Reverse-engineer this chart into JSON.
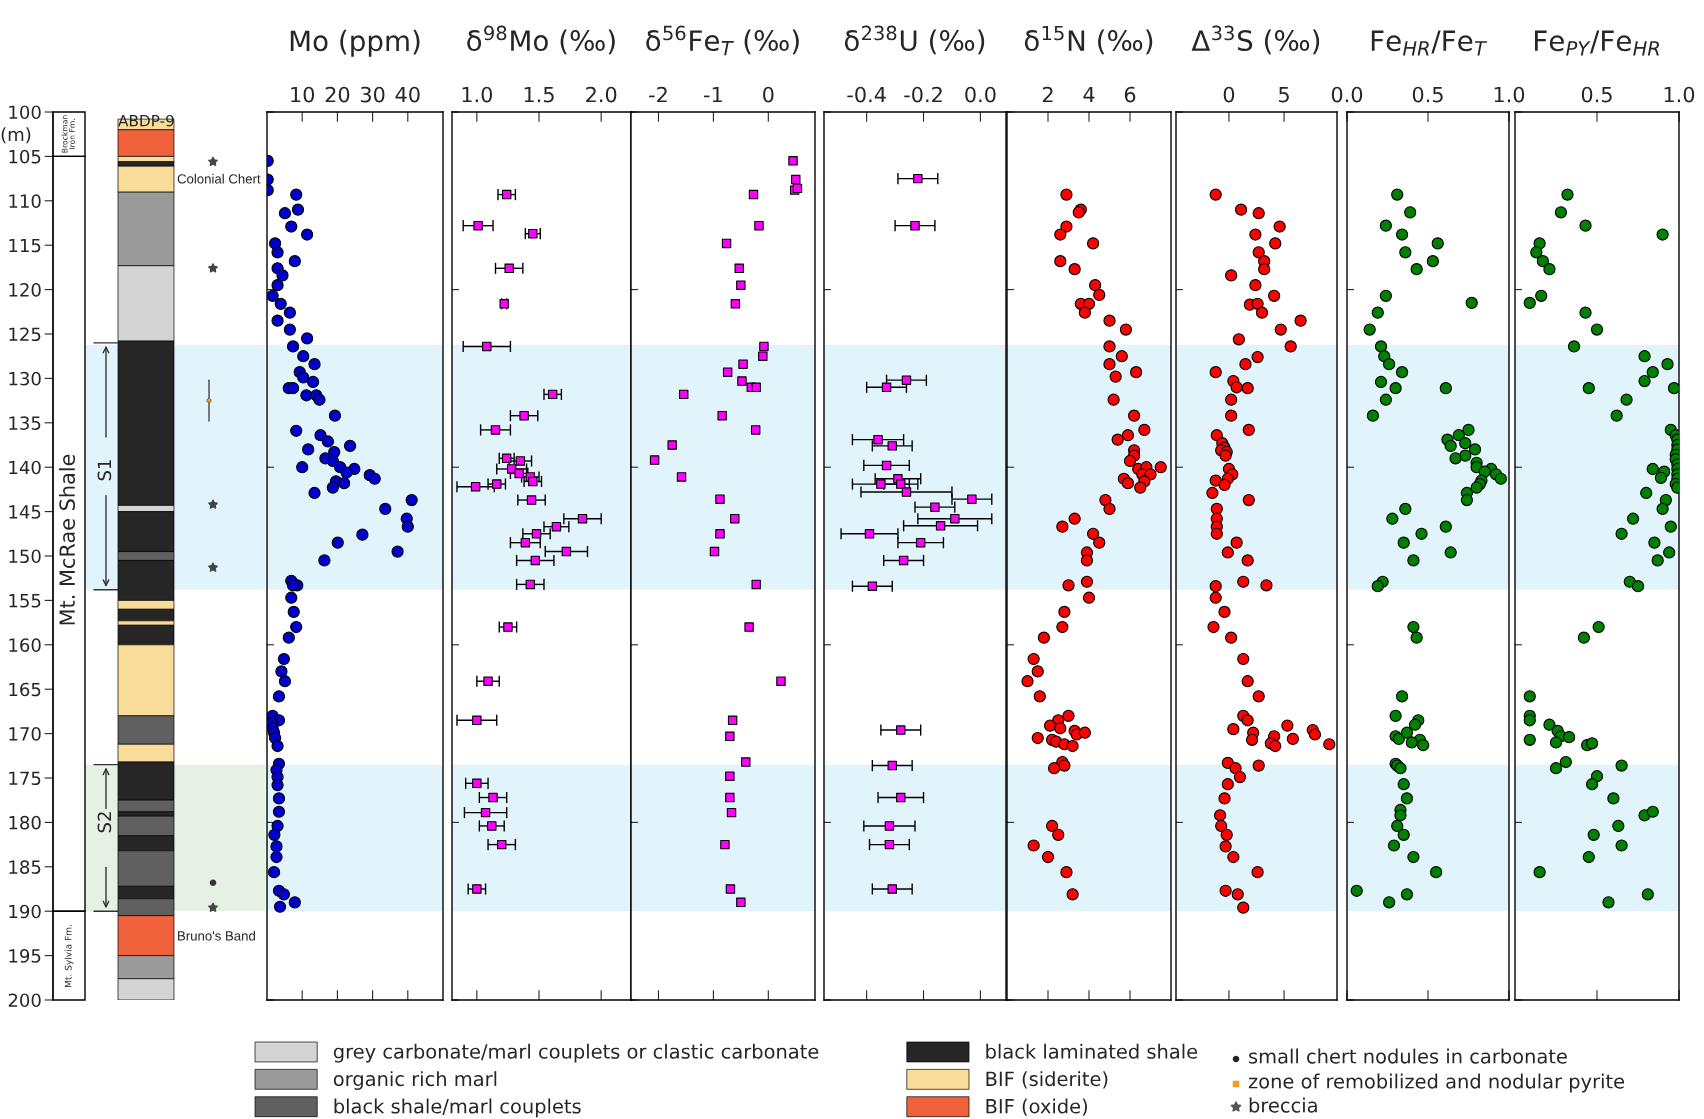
{
  "chart_data": [
    {
      "type": "bar",
      "categories": [
        null
      ],
      "tick_labels": "y",
      "legend": "bottom",
      "ylabel": "(m)",
      "ylim": [
        200,
        100
      ],
      "yticks": [
        100,
        105,
        110,
        115,
        120,
        125,
        130,
        135,
        140,
        145,
        150,
        155,
        160,
        165,
        170,
        175,
        180,
        185,
        190,
        195,
        200
      ],
      "series": [
        {
          "name": "grey carbonate/marl couplets or clastic carbonate",
          "color": "#d4d4d4",
          "base": [
            117.3
          ],
          "values": [
            8.5
          ]
        },
        {
          "name": "organic rich marl",
          "color": "#9a9a9a",
          "base": [
            109
          ],
          "values": [
            8.3
          ]
        },
        {
          "name": "black shale/marl couplets",
          "color": "#606060",
          "base": [
            149.5
          ],
          "values": [
            1
          ]
        },
        {
          "name": "black laminated shale",
          "color": "#262626",
          "base": [
            125.8
          ],
          "values": [
            18.5
          ]
        },
        {
          "name": "BIF (siderite)",
          "color": "#f9dc9a",
          "base": [
            100.8
          ],
          "values": [
            1.2
          ]
        },
        {
          "name": "BIF (oxide)",
          "color": "#f0623c",
          "base": [
            102
          ],
          "values": [
            3
          ]
        },
        {
          "color": "#f9dc9a",
          "base": [
            105
          ],
          "values": [
            0.6
          ]
        },
        {
          "color": "#262626",
          "base": [
            105.6
          ],
          "values": [
            0.5
          ]
        },
        {
          "color": "#f9dc9a",
          "base": [
            106.1
          ],
          "values": [
            2.9
          ]
        },
        {
          "color": "#d4d4d4",
          "base": [
            144.3
          ],
          "values": [
            0.7
          ]
        },
        {
          "color": "#262626",
          "base": [
            145
          ],
          "values": [
            4.5
          ]
        },
        {
          "color": "#262626",
          "base": [
            150.5
          ],
          "values": [
            4.5
          ]
        },
        {
          "color": "#f9dc9a",
          "base": [
            155
          ],
          "values": [
            1
          ]
        },
        {
          "color": "#262626",
          "base": [
            156
          ],
          "values": [
            1.3
          ]
        },
        {
          "color": "#f9dc9a",
          "base": [
            157.3
          ],
          "values": [
            0.5
          ]
        },
        {
          "color": "#262626",
          "base": [
            157.8
          ],
          "values": [
            2.2
          ]
        },
        {
          "color": "#f9dc9a",
          "base": [
            160
          ],
          "values": [
            8
          ]
        },
        {
          "color": "#606060",
          "base": [
            168
          ],
          "values": [
            3.2
          ]
        },
        {
          "color": "#f9dc9a",
          "base": [
            171.2
          ],
          "values": [
            2
          ]
        },
        {
          "color": "#262626",
          "base": [
            173.2
          ],
          "values": [
            4.3
          ]
        },
        {
          "color": "#606060",
          "base": [
            177.5
          ],
          "values": [
            1.3
          ]
        },
        {
          "color": "#262626",
          "base": [
            178.8
          ],
          "values": [
            0.5
          ]
        },
        {
          "color": "#606060",
          "base": [
            179.3
          ],
          "values": [
            2.2
          ]
        },
        {
          "color": "#262626",
          "base": [
            181.5
          ],
          "values": [
            1.7
          ]
        },
        {
          "color": "#606060",
          "base": [
            183.2
          ],
          "values": [
            4
          ]
        },
        {
          "color": "#262626",
          "base": [
            187.2
          ],
          "values": [
            1.4
          ]
        },
        {
          "color": "#606060",
          "base": [
            188.6
          ],
          "values": [
            1.9
          ]
        },
        {
          "color": "#f0623c",
          "base": [
            190.5
          ],
          "values": [
            4.5
          ]
        },
        {
          "color": "#9a9a9a",
          "base": [
            195
          ],
          "values": [
            2.6
          ]
        },
        {
          "color": "#d4d4d4",
          "base": [
            197.6
          ],
          "values": [
            2.4
          ]
        }
      ],
      "bands": [
        {
          "axis": "y",
          "from": 126.2,
          "to": 153.8,
          "color": "#e1f4fb"
        },
        {
          "axis": "y",
          "from": 173.5,
          "to": 190,
          "color": "#e5f2e3"
        }
      ],
      "annotations": [
        "ABDP-9",
        "Colonial Chert",
        "Bruno's Band",
        "Mt. McRae Shale",
        "S1",
        "S2",
        "Brockman Iron Fm.",
        "Mt. Sylvia Fm.",
        "small chert nodules in carbonate",
        "zone of remobilized and nodular pyrite",
        "breccia"
      ]
    },
    {
      "type": "scatter",
      "title": "Mo (ppm)",
      "xlim": [
        0,
        50
      ],
      "xticks": [
        10,
        20,
        30,
        40
      ],
      "ylim": [
        200,
        100
      ],
      "yticks": [
        100,
        120,
        140,
        160,
        180,
        200
      ],
      "tick_labels": "x",
      "marker": "circle",
      "bands": [
        {
          "axis": "y",
          "from": 126.2,
          "to": 153.8,
          "color": "#e1f4fb"
        },
        {
          "axis": "y",
          "from": 173.5,
          "to": 190,
          "color": "#e1f4fb"
        }
      ],
      "series": [
        {
          "color": "#0000cc",
          "x": [
            0.2,
            0.2,
            0.2,
            8.3,
            5.1,
            8.8,
            6.9,
            11.4,
            2.3,
            3.0,
            7.9,
            3.0,
            4.4,
            3.0,
            1.6,
            3.9,
            6.5,
            3.0,
            6.5,
            11.4,
            7.4,
            10.3,
            13.5,
            9.3,
            10.3,
            13.1,
            6.2,
            7.4,
            11.2,
            14.0,
            14.9,
            19.3,
            8.3,
            15.2,
            17.3,
            11.7,
            23.6,
            19.1,
            16.6,
            18.7,
            20.8,
            24.8,
            22.6,
            29.2,
            30.6,
            19.6,
            21.9,
            18.7,
            10.0,
            13.5,
            41.1,
            33.6,
            39.7,
            40.0,
            27.1,
            20.1,
            37.1,
            16.3,
            6.9,
            8.6,
            7.4,
            6.9,
            7.6,
            8.3,
            6.2,
            4.8,
            4.1,
            5.1,
            3.4,
            1.6,
            3.4,
            1.3,
            1.6,
            2.0,
            2.3,
            3.0,
            3.4,
            2.7,
            3.0,
            3.0,
            3.4,
            3.4,
            3.0,
            2.1,
            2.7,
            2.7,
            2.0,
            3.4,
            4.8,
            7.9,
            3.7
          ],
          "values": [
            105.5,
            107.6,
            108.8,
            109.3,
            111.4,
            111.0,
            112.9,
            113.8,
            114.8,
            115.8,
            116.8,
            117.6,
            118.4,
            119.5,
            120.7,
            121.6,
            122.6,
            123.5,
            124.5,
            125.5,
            126.4,
            127.5,
            128.4,
            129.3,
            129.9,
            130.4,
            131.1,
            131.1,
            131.9,
            131.9,
            132.4,
            134.2,
            135.9,
            136.4,
            137.1,
            138.0,
            137.6,
            138.3,
            139.0,
            139.3,
            140.0,
            140.2,
            140.6,
            140.9,
            141.3,
            141.6,
            141.8,
            142.3,
            140.0,
            142.9,
            143.7,
            144.7,
            145.8,
            146.7,
            147.6,
            148.5,
            149.5,
            150.5,
            152.8,
            153.3,
            153.3,
            154.7,
            156.3,
            158.0,
            159.2,
            161.6,
            163.0,
            164.1,
            165.8,
            168.0,
            168.5,
            168.8,
            169.4,
            169.9,
            170.5,
            171.4,
            173.4,
            174.1,
            174.9,
            175.8,
            177.3,
            178.8,
            180.4,
            181.4,
            182.7,
            183.9,
            185.6,
            187.7,
            188.1,
            189.0,
            189.5
          ]
        }
      ]
    },
    {
      "type": "scatter",
      "title": "δ$^{98}$Mo (‰)",
      "xlim": [
        0.8,
        2.24
      ],
      "xticks": [
        {
          "value": 1,
          "label": "1.0"
        },
        {
          "value": 1.5,
          "label": "1.5"
        },
        {
          "value": 2,
          "label": "2.0"
        }
      ],
      "ylim": [
        200,
        100
      ],
      "yticks": [
        100,
        120,
        140,
        160,
        180,
        200
      ],
      "tick_labels": "x",
      "marker": "square",
      "bands": [
        {
          "axis": "y",
          "from": 126.2,
          "to": 153.8,
          "color": "#e1f4fb"
        },
        {
          "axis": "y",
          "from": 173.5,
          "to": 190,
          "color": "#e1f4fb"
        }
      ],
      "series": [
        {
          "color": "#ff00ff",
          "x": [
            1.24,
            1.01,
            1.45,
            1.26,
            1.22,
            1.08,
            1.61,
            1.38,
            1.15,
            1.24,
            1.35,
            1.28,
            1.34,
            1.43,
            1.45,
            1.16,
            0.99,
            1.44,
            1.85,
            1.64,
            1.48,
            1.39,
            1.72,
            1.47,
            1.43,
            1.25,
            1.09,
            1.0,
            1.0,
            1.13,
            1.07,
            1.12,
            1.2,
            1.0
          ],
          "values": [
            109.3,
            112.8,
            113.7,
            117.6,
            121.6,
            126.4,
            131.8,
            134.2,
            135.8,
            139.0,
            139.3,
            140.2,
            140.7,
            141.1,
            141.6,
            141.9,
            142.2,
            143.7,
            145.8,
            146.7,
            147.5,
            148.5,
            149.5,
            150.5,
            153.2,
            158.0,
            164.1,
            168.5,
            175.6,
            177.2,
            178.9,
            180.4,
            182.5,
            187.5
          ],
          "xerrors": [
            0.07,
            0.12,
            0.06,
            0.11,
            0.02,
            0.19,
            0.07,
            0.11,
            0.12,
            0.06,
            0.09,
            0.12,
            0.07,
            0.07,
            0.07,
            0.07,
            0.15,
            0.11,
            0.15,
            0.1,
            0.11,
            0.12,
            0.17,
            0.15,
            0.11,
            0.07,
            0.09,
            0.16,
            0.09,
            0.11,
            0.17,
            0.1,
            0.11,
            0.07
          ]
        }
      ]
    },
    {
      "type": "scatter",
      "title": "δ$^{56}$Fe$_{T}$ (‰)",
      "xlim": [
        -2.5,
        0.85
      ],
      "xticks": [
        -2,
        -1,
        0
      ],
      "ylim": [
        200,
        100
      ],
      "yticks": [
        100,
        120,
        140,
        160,
        180,
        200
      ],
      "tick_labels": "x",
      "marker": "square",
      "bands": [
        {
          "axis": "y",
          "from": 126.2,
          "to": 153.8,
          "color": "#e1f4fb"
        },
        {
          "axis": "y",
          "from": 173.5,
          "to": 190,
          "color": "#e1f4fb"
        }
      ],
      "series": [
        {
          "color": "#ff00ff",
          "x": [
            0.45,
            0.5,
            0.48,
            0.53,
            -0.27,
            -0.17,
            -0.76,
            -0.53,
            -0.5,
            -0.6,
            -0.08,
            -0.1,
            -0.46,
            -0.74,
            -0.48,
            -0.31,
            -0.22,
            -1.54,
            -0.84,
            -0.23,
            -1.75,
            -2.07,
            -1.58,
            -0.88,
            -0.61,
            -0.88,
            -0.98,
            -0.22,
            -0.35,
            0.23,
            -0.65,
            -0.7,
            -0.41,
            -0.7,
            -0.7,
            -0.67,
            -0.79,
            -0.69,
            -0.5
          ],
          "values": [
            105.5,
            107.6,
            108.8,
            108.6,
            109.3,
            112.8,
            114.8,
            117.6,
            119.5,
            121.6,
            126.4,
            127.5,
            128.4,
            129.3,
            130.3,
            131.0,
            131.0,
            131.8,
            134.2,
            135.8,
            137.5,
            139.2,
            141.1,
            143.6,
            145.8,
            147.5,
            149.5,
            153.2,
            158.0,
            164.1,
            168.5,
            170.3,
            173.2,
            174.8,
            177.2,
            178.9,
            182.5,
            187.5,
            189.0
          ]
        }
      ]
    },
    {
      "type": "scatter",
      "title": "δ$^{238}$U (‰)",
      "xlim": [
        -0.55,
        0.09
      ],
      "xticks": [
        -0.4,
        -0.2,
        {
          "value": 0,
          "label": "0.0"
        }
      ],
      "ylim": [
        200,
        100
      ],
      "yticks": [
        100,
        120,
        140,
        160,
        180,
        200
      ],
      "tick_labels": "x",
      "marker": "square",
      "bands": [
        {
          "axis": "y",
          "from": 126.2,
          "to": 153.8,
          "color": "#e1f4fb"
        },
        {
          "axis": "y",
          "from": 173.5,
          "to": 190,
          "color": "#e1f4fb"
        }
      ],
      "series": [
        {
          "color": "#ff00ff",
          "x": [
            -0.22,
            -0.23,
            -0.26,
            -0.33,
            -0.36,
            -0.31,
            -0.33,
            -0.29,
            -0.35,
            -0.28,
            -0.26,
            -0.03,
            -0.16,
            -0.09,
            -0.14,
            -0.39,
            -0.21,
            -0.27,
            -0.38,
            -0.28,
            -0.31,
            -0.28,
            -0.32,
            -0.32,
            -0.31
          ],
          "values": [
            107.5,
            112.8,
            130.2,
            131.0,
            136.9,
            137.6,
            139.8,
            141.3,
            141.9,
            141.9,
            142.8,
            143.6,
            144.5,
            145.8,
            146.6,
            147.5,
            148.5,
            150.5,
            153.4,
            169.6,
            173.6,
            177.2,
            180.4,
            182.5,
            187.5
          ],
          "xerrors": [
            0.07,
            0.07,
            0.07,
            0.07,
            0.09,
            0.07,
            0.08,
            0.08,
            0.1,
            0.06,
            0.16,
            0.07,
            0.07,
            0.13,
            0.13,
            0.1,
            0.08,
            0.07,
            0.07,
            0.07,
            0.07,
            0.08,
            0.09,
            0.07,
            0.07
          ]
        }
      ]
    },
    {
      "type": "scatter",
      "title": "δ$^{15}$N (‰)",
      "xlim": [
        0,
        8
      ],
      "xticks": [
        2,
        4,
        6
      ],
      "ylim": [
        200,
        100
      ],
      "yticks": [
        100,
        120,
        140,
        160,
        180,
        200
      ],
      "tick_labels": "x",
      "marker": "circle",
      "bands": [
        {
          "axis": "y",
          "from": 126.2,
          "to": 153.8,
          "color": "#e1f4fb"
        },
        {
          "axis": "y",
          "from": 173.5,
          "to": 190,
          "color": "#e1f4fb"
        }
      ],
      "series": [
        {
          "color": "#ff0000",
          "x": [
            2.9,
            3.6,
            3.5,
            2.9,
            2.6,
            4.2,
            2.6,
            3.3,
            4.3,
            4.5,
            3.6,
            4.0,
            3.8,
            5.0,
            5.8,
            5.0,
            5.6,
            5.0,
            5.3,
            6.3,
            5.2,
            6.2,
            6.7,
            5.9,
            5.4,
            6.2,
            6.2,
            6.0,
            6.4,
            6.8,
            7.5,
            6.6,
            7.0,
            5.7,
            6.7,
            5.9,
            6.5,
            4.8,
            5.0,
            3.3,
            2.7,
            4.2,
            4.5,
            3.9,
            3.9,
            3.0,
            3.9,
            4.0,
            2.8,
            2.7,
            1.8,
            1.3,
            1.5,
            1.0,
            1.6,
            3.0,
            2.5,
            2.1,
            2.6,
            3.3,
            3.4,
            3.8,
            1.5,
            2.2,
            2.4,
            2.8,
            3.2,
            2.7,
            2.8,
            2.3,
            2.2,
            2.5,
            1.3,
            2.0,
            2.9,
            3.2
          ],
          "values": [
            109.3,
            111.0,
            111.3,
            112.9,
            113.8,
            114.8,
            116.8,
            117.7,
            119.5,
            120.6,
            121.6,
            121.6,
            122.6,
            123.5,
            124.5,
            126.4,
            127.5,
            128.4,
            129.8,
            129.3,
            132.4,
            134.2,
            135.8,
            136.4,
            136.9,
            138.1,
            138.7,
            139.3,
            140.2,
            140.0,
            140.0,
            140.8,
            140.8,
            141.3,
            141.6,
            141.8,
            142.3,
            143.7,
            144.7,
            145.8,
            146.7,
            147.5,
            148.5,
            149.6,
            150.5,
            153.3,
            152.9,
            154.7,
            156.3,
            158.0,
            159.2,
            161.6,
            163.0,
            164.1,
            165.8,
            168.0,
            168.5,
            169.1,
            169.4,
            169.7,
            170.1,
            169.9,
            170.5,
            170.7,
            170.9,
            171.2,
            171.4,
            173.2,
            173.6,
            173.9,
            180.4,
            181.4,
            182.6,
            183.9,
            185.6,
            188.1
          ]
        }
      ]
    },
    {
      "type": "scatter",
      "title": "Δ$^{33}$S (‰)",
      "xlim": [
        -4.8,
        9.8
      ],
      "xticks": [
        0,
        5
      ],
      "ylim": [
        200,
        100
      ],
      "yticks": [
        100,
        120,
        140,
        160,
        180,
        200
      ],
      "tick_labels": "x",
      "marker": "circle",
      "bands": [
        {
          "axis": "y",
          "from": 126.2,
          "to": 153.8,
          "color": "#e1f4fb"
        },
        {
          "axis": "y",
          "from": 173.5,
          "to": 190,
          "color": "#e1f4fb"
        }
      ],
      "series": [
        {
          "color": "#ff0000",
          "x": [
            -1.2,
            1.1,
            2.7,
            4.6,
            2.4,
            4.2,
            2.7,
            3.2,
            3.2,
            0.2,
            2.4,
            4.1,
            1.9,
            2.6,
            3.0,
            6.5,
            4.7,
            0.9,
            5.6,
            2.6,
            1.5,
            -1.2,
            0.4,
            1.7,
            0.7,
            0.2,
            0.2,
            1.8,
            -1.1,
            -0.6,
            -0.4,
            -0.7,
            -0.2,
            -0.3,
            0.0,
            0.3,
            -0.1,
            -1.2,
            -0.4,
            -1.5,
            1.8,
            -1.1,
            -1.1,
            -1.1,
            -1.1,
            0.7,
            -0.1,
            1.7,
            1.3,
            3.4,
            -1.2,
            -1.2,
            -0.4,
            -1.4,
            0.2,
            1.3,
            1.7,
            2.7,
            1.3,
            1.7,
            0.4,
            2.2,
            5.3,
            2.1,
            4.1,
            3.8,
            4.2,
            5.8,
            7.6,
            7.8,
            9.1,
            2.7,
            -0.1,
            0.6,
            1.0,
            -0.1,
            -0.4,
            -0.8,
            -0.7,
            -0.2,
            -0.3,
            0.4,
            2.6,
            -0.3,
            0.8,
            1.3
          ],
          "values": [
            109.3,
            111.0,
            111.4,
            112.9,
            113.8,
            114.8,
            115.8,
            116.8,
            117.7,
            118.4,
            119.5,
            120.7,
            121.7,
            121.6,
            122.6,
            123.5,
            124.5,
            125.6,
            126.4,
            127.6,
            128.4,
            129.3,
            130.3,
            131.1,
            131.0,
            132.4,
            134.2,
            135.8,
            136.4,
            137.3,
            137.8,
            138.1,
            138.3,
            138.7,
            140.2,
            140.8,
            141.3,
            141.5,
            142.0,
            142.9,
            143.7,
            144.7,
            145.8,
            146.7,
            147.5,
            148.5,
            149.6,
            150.5,
            152.9,
            153.3,
            153.4,
            154.7,
            156.3,
            158.0,
            159.2,
            161.6,
            164.1,
            165.8,
            168.0,
            168.5,
            169.5,
            169.9,
            169.1,
            170.7,
            170.3,
            171.1,
            171.4,
            170.6,
            169.6,
            170.1,
            171.2,
            173.6,
            173.3,
            173.9,
            174.9,
            175.7,
            177.3,
            179.2,
            180.4,
            181.4,
            182.7,
            183.9,
            185.6,
            187.7,
            188.1,
            189.6
          ]
        }
      ]
    },
    {
      "type": "scatter",
      "title": "Fe$_{HR}$/Fe$_{T}$",
      "xlim": [
        0,
        1
      ],
      "xticks": [
        {
          "value": 0,
          "label": "0.0"
        },
        {
          "value": 0.5,
          "label": "0.5"
        },
        {
          "value": 1,
          "label": "1.0"
        }
      ],
      "ylim": [
        200,
        100
      ],
      "yticks": [
        100,
        120,
        140,
        160,
        180,
        200
      ],
      "tick_labels": "x",
      "marker": "circle",
      "bands": [
        {
          "axis": "y",
          "from": 126.2,
          "to": 153.8,
          "color": "#e1f4fb"
        },
        {
          "axis": "y",
          "from": 173.5,
          "to": 190,
          "color": "#e1f4fb"
        }
      ],
      "series": [
        {
          "color": "#008000",
          "x": [
            0.31,
            0.39,
            0.24,
            0.34,
            0.56,
            0.36,
            0.53,
            0.43,
            0.24,
            0.77,
            0.19,
            0.14,
            0.21,
            0.23,
            0.26,
            0.34,
            0.21,
            0.3,
            0.61,
            0.24,
            0.16,
            0.75,
            0.69,
            0.62,
            0.73,
            0.64,
            0.79,
            0.73,
            0.67,
            0.8,
            0.8,
            0.89,
            0.85,
            0.92,
            0.95,
            0.83,
            0.82,
            0.8,
            0.74,
            0.74,
            0.36,
            0.28,
            0.46,
            0.61,
            0.35,
            0.64,
            0.41,
            0.22,
            0.19,
            0.41,
            0.43,
            0.34,
            0.3,
            0.44,
            0.3,
            0.32,
            0.42,
            0.37,
            0.45,
            0.4,
            0.47,
            0.3,
            0.31,
            0.33,
            0.35,
            0.37,
            0.33,
            0.33,
            0.31,
            0.35,
            0.29,
            0.41,
            0.55,
            0.06,
            0.26,
            0.37
          ],
          "values": [
            109.3,
            111.3,
            112.8,
            113.8,
            114.8,
            115.8,
            116.8,
            117.7,
            120.7,
            121.5,
            122.6,
            124.5,
            126.4,
            127.5,
            128.4,
            129.3,
            130.4,
            131.1,
            131.1,
            132.4,
            134.2,
            135.8,
            136.4,
            136.9,
            137.3,
            137.6,
            138.0,
            138.7,
            139.0,
            139.5,
            140.0,
            140.2,
            140.5,
            140.8,
            141.3,
            141.5,
            141.9,
            142.3,
            142.9,
            143.7,
            144.7,
            145.8,
            147.5,
            146.7,
            148.5,
            149.6,
            150.5,
            152.9,
            153.4,
            158.0,
            159.2,
            165.8,
            168.0,
            168.5,
            170.3,
            170.6,
            169.0,
            169.9,
            170.7,
            171.0,
            171.3,
            173.4,
            173.6,
            173.9,
            175.7,
            177.3,
            178.6,
            179.2,
            180.4,
            181.4,
            182.6,
            183.9,
            185.6,
            187.7,
            189.0,
            188.1
          ]
        }
      ]
    },
    {
      "type": "scatter",
      "title": "Fe$_{PY}$/Fe$_{HR}$",
      "xlim": [
        0,
        1
      ],
      "xticks": [
        {
          "value": 0.5,
          "label": "0.5"
        },
        {
          "value": 1,
          "label": "1.0"
        }
      ],
      "ylim": [
        200,
        100
      ],
      "yticks": [
        100,
        120,
        140,
        160,
        180,
        200
      ],
      "tick_labels": "x",
      "marker": "circle",
      "bands": [
        {
          "axis": "y",
          "from": 126.2,
          "to": 153.8,
          "color": "#e1f4fb"
        },
        {
          "axis": "y",
          "from": 173.5,
          "to": 190,
          "color": "#e1f4fb"
        }
      ],
      "series": [
        {
          "color": "#008000",
          "x": [
            0.32,
            0.28,
            0.43,
            0.9,
            0.15,
            0.13,
            0.17,
            0.21,
            0.16,
            0.09,
            0.43,
            0.5,
            0.36,
            0.79,
            0.93,
            0.84,
            0.79,
            0.97,
            0.45,
            0.68,
            0.62,
            0.95,
            0.98,
            0.99,
            0.99,
            0.99,
            0.98,
            0.98,
            0.99,
            0.99,
            0.84,
            0.91,
            0.89,
            0.99,
            0.99,
            0.98,
            0.99,
            0.8,
            0.92,
            0.9,
            0.72,
            0.95,
            0.65,
            0.85,
            0.94,
            0.87,
            0.7,
            0.75,
            0.51,
            0.42,
            0.09,
            0.09,
            0.09,
            0.09,
            0.21,
            0.26,
            0.28,
            0.33,
            0.25,
            0.44,
            0.47,
            0.31,
            0.25,
            0.65,
            0.5,
            0.47,
            0.6,
            0.79,
            0.84,
            0.63,
            0.48,
            0.65,
            0.45,
            0.15,
            0.57,
            0.81
          ],
          "values": [
            109.3,
            111.3,
            112.8,
            113.8,
            114.8,
            115.8,
            116.8,
            117.7,
            120.7,
            121.5,
            122.6,
            124.5,
            126.4,
            127.5,
            128.4,
            129.3,
            130.3,
            131.1,
            131.1,
            132.4,
            134.2,
            135.8,
            136.4,
            136.9,
            137.5,
            138.0,
            138.6,
            139.1,
            139.7,
            140.2,
            140.2,
            140.5,
            141.2,
            140.8,
            141.3,
            141.9,
            142.3,
            142.9,
            143.7,
            144.7,
            145.8,
            146.7,
            147.5,
            148.5,
            149.6,
            150.5,
            152.9,
            153.4,
            158.0,
            159.2,
            165.8,
            168.0,
            168.5,
            170.7,
            169.0,
            169.7,
            170.3,
            170.4,
            171.0,
            171.3,
            171.1,
            173.2,
            173.9,
            173.6,
            174.8,
            175.7,
            177.3,
            179.2,
            178.8,
            180.4,
            181.4,
            182.6,
            183.9,
            185.6,
            189.0,
            188.1
          ]
        }
      ]
    }
  ]
}
